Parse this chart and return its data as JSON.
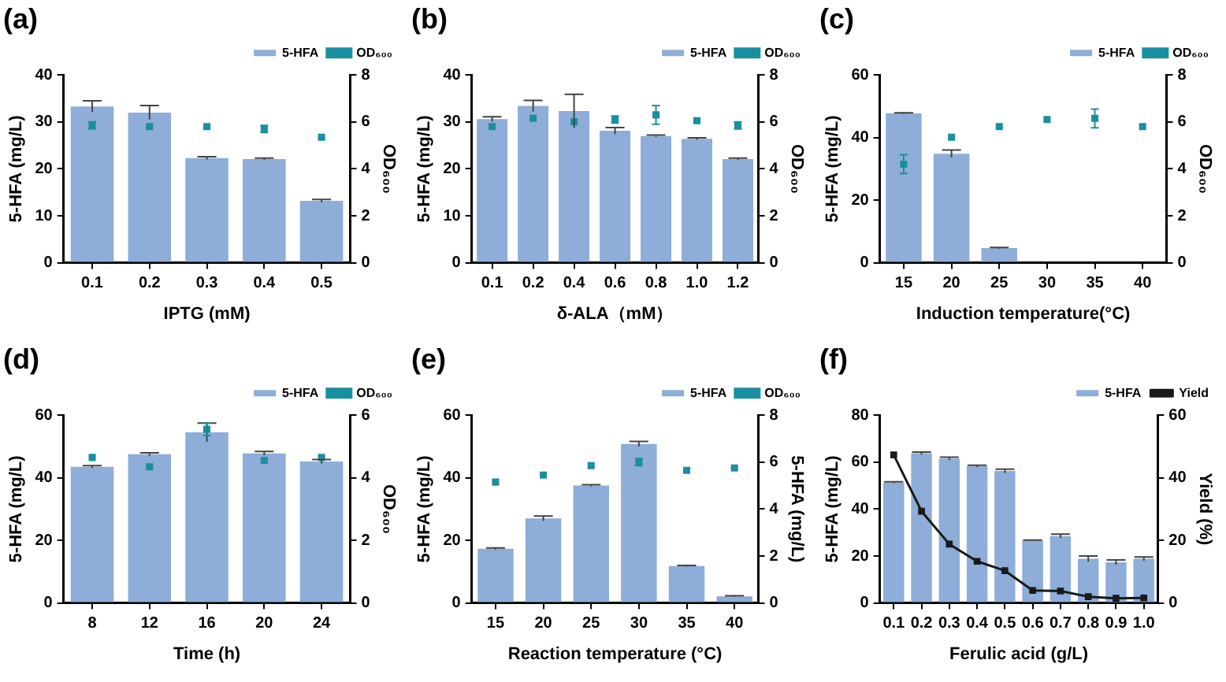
{
  "chart_data": [
    {
      "type": "bar",
      "title": "(a)",
      "xlabel": "IPTG (mM)",
      "ylabel": "5-HFA (mg/L)",
      "y2label": "OD₆₀₀",
      "categories": [
        "0.1",
        "0.2",
        "0.3",
        "0.4",
        "0.5"
      ],
      "series": [
        {
          "name": "5-HFA",
          "color": "#8eadd8",
          "values": [
            33.3,
            32,
            22.3,
            22.1,
            13.2
          ],
          "errors": [
            1.2,
            1.5,
            0.3,
            0.2,
            0.3
          ]
        },
        {
          "name": "OD₆₀₀",
          "type": "scatter",
          "axis": "y2",
          "color": "#1a8fa0",
          "values": [
            5.85,
            5.8,
            5.8,
            5.7,
            5.35
          ],
          "errors": [
            0.15,
            null,
            null,
            0.15,
            null
          ]
        }
      ],
      "ylim": [
        0,
        40
      ],
      "yticks": [
        0,
        10,
        20,
        30,
        40
      ],
      "y2lim": [
        0,
        8
      ],
      "y2ticks": [
        0,
        2,
        4,
        6,
        8
      ],
      "legend": "top right",
      "marker": "square"
    },
    {
      "type": "bar",
      "title": "(b)",
      "xlabel": "δ-ALA（mM）",
      "ylabel": "5-HFA (mg/L)",
      "y2label": "OD₆₀₀",
      "categories": [
        "0.1",
        "0.2",
        "0.4",
        "0.6",
        "0.8",
        "1.0",
        "1.2"
      ],
      "series": [
        {
          "name": "5-HFA",
          "color": "#8eadd8",
          "values": [
            30.6,
            33.4,
            32.3,
            28.1,
            27,
            26.4,
            22.1
          ],
          "errors": [
            0.5,
            1.2,
            3.6,
            0.7,
            0.2,
            0.2,
            0.2
          ]
        },
        {
          "name": "OD₆₀₀",
          "type": "scatter",
          "axis": "y2",
          "color": "#1a8fa0",
          "values": [
            5.8,
            6.15,
            6.0,
            6.1,
            6.3,
            6.05,
            5.85
          ],
          "errors": [
            null,
            null,
            null,
            0.15,
            0.4,
            null,
            0.15
          ]
        }
      ],
      "ylim": [
        0,
        40
      ],
      "yticks": [
        0,
        10,
        20,
        30,
        40
      ],
      "y2lim": [
        0,
        8
      ],
      "y2ticks": [
        0,
        2,
        4,
        6,
        8
      ],
      "legend": "top right",
      "marker": "square"
    },
    {
      "type": "bar",
      "title": "(c)",
      "xlabel": "Induction temperature(°C)",
      "ylabel": "5-HFA (mg/L)",
      "y2label": "OD₆₀₀",
      "categories": [
        "15",
        "20",
        "25",
        "30",
        "35",
        "40"
      ],
      "series": [
        {
          "name": "5-HFA",
          "color": "#8eadd8",
          "values": [
            47.7,
            34.8,
            4.7,
            0,
            0,
            0
          ],
          "errors": [
            0.2,
            1.2,
            0.2,
            null,
            null,
            null
          ]
        },
        {
          "name": "OD₆₀₀",
          "type": "scatter",
          "axis": "y2",
          "color": "#1a8fa0",
          "values": [
            4.2,
            5.35,
            5.8,
            6.1,
            6.15,
            5.8
          ],
          "errors": [
            0.4,
            null,
            null,
            null,
            0.4,
            null
          ]
        }
      ],
      "ylim": [
        0,
        60
      ],
      "yticks": [
        0,
        20,
        40,
        60
      ],
      "y2lim": [
        0,
        8
      ],
      "y2ticks": [
        0,
        2,
        4,
        6,
        8
      ],
      "legend": "top right",
      "marker": "square"
    },
    {
      "type": "bar",
      "title": "(d)",
      "xlabel": "Time (h)",
      "ylabel": "5-HFA (mg/L)",
      "y2label": "OD₆₀₀",
      "categories": [
        "8",
        "12",
        "16",
        "20",
        "24"
      ],
      "series": [
        {
          "name": "5-HFA",
          "color": "#8eadd8",
          "values": [
            43.5,
            47.5,
            54.5,
            47.8,
            45.2
          ],
          "errors": [
            0.4,
            0.5,
            3,
            0.6,
            0.6
          ]
        },
        {
          "name": "OD₆₀₀",
          "type": "scatter",
          "axis": "y2",
          "color": "#1a8fa0",
          "values": [
            4.65,
            4.35,
            5.55,
            4.55,
            4.65
          ],
          "errors": [
            null,
            null,
            0.2,
            null,
            null
          ]
        }
      ],
      "ylim": [
        0,
        60
      ],
      "yticks": [
        0,
        20,
        40,
        60
      ],
      "y2lim": [
        0,
        6
      ],
      "y2ticks": [
        0,
        2,
        4,
        6
      ],
      "legend": "top right",
      "marker": "square"
    },
    {
      "type": "bar",
      "title": "(e)",
      "xlabel": "Reaction temperature (°C)",
      "ylabel": "5-HFA (mg/L)",
      "y2label": "5-HFA (mg/L)",
      "categories": [
        "15",
        "20",
        "25",
        "30",
        "35",
        "40"
      ],
      "series": [
        {
          "name": "5-HFA",
          "color": "#8eadd8",
          "values": [
            17.3,
            27,
            37.5,
            50.8,
            11.8,
            2.1
          ],
          "errors": [
            0.3,
            0.8,
            0.3,
            0.8,
            0.2,
            0.2
          ]
        },
        {
          "name": "OD₆₀₀",
          "type": "scatter",
          "axis": "y2",
          "color": "#1a8fa0",
          "values": [
            5.15,
            5.45,
            5.85,
            6.0,
            5.65,
            5.75
          ],
          "errors": [
            null,
            null,
            null,
            0.15,
            null,
            null
          ]
        }
      ],
      "ylim": [
        0,
        60
      ],
      "yticks": [
        0,
        20,
        40,
        60
      ],
      "y2lim": [
        0,
        8
      ],
      "y2ticks": [
        0,
        2,
        4,
        6,
        8
      ],
      "legend": "top right",
      "marker": "square"
    },
    {
      "type": "bar",
      "title": "(f)",
      "xlabel": "Ferulic acid (g/L)",
      "ylabel": "5-HFA (mg/L)",
      "y2label": "Yield (%)",
      "categories": [
        "0.1",
        "0.2",
        "0.3",
        "0.4",
        "0.5",
        "0.6",
        "0.7",
        "0.8",
        "0.9",
        "1.0"
      ],
      "series": [
        {
          "name": "5-HFA",
          "color": "#8eadd8",
          "values": [
            51.3,
            63.8,
            61.5,
            58.3,
            56.2,
            26.6,
            28.5,
            18.8,
            17.3,
            18.8
          ],
          "errors": [
            0.3,
            0.5,
            0.6,
            0.4,
            0.8,
            0.2,
            0.8,
            1.2,
            1,
            0.8
          ]
        },
        {
          "name": "Yield",
          "type": "line",
          "axis": "y2",
          "color": "#1a1a1a",
          "values": [
            47.3,
            29.3,
            18.8,
            13.3,
            10.3,
            4,
            3.8,
            2,
            1.5,
            1.6
          ]
        }
      ],
      "ylim": [
        0,
        80
      ],
      "yticks": [
        0,
        20,
        40,
        60,
        80
      ],
      "y2lim": [
        0,
        60
      ],
      "y2ticks": [
        0,
        20,
        40,
        60
      ],
      "legend": "top right",
      "marker": "square"
    }
  ]
}
